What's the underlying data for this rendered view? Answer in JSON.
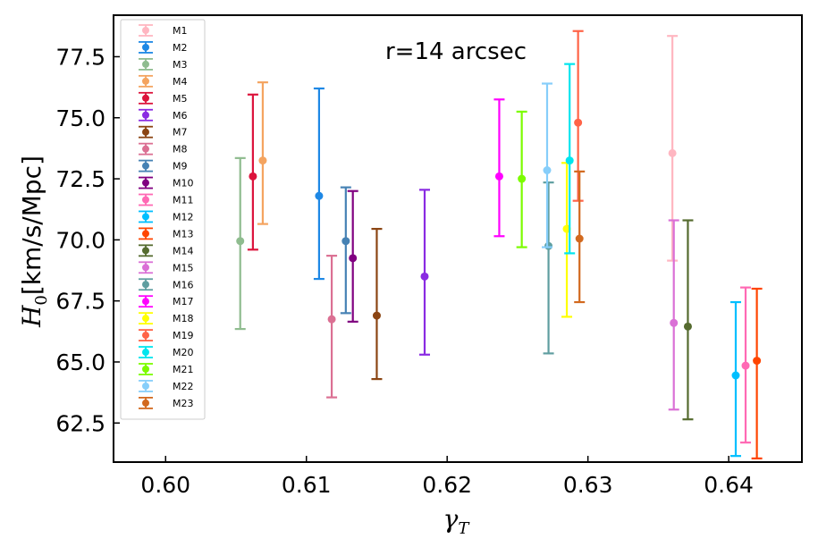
{
  "chart_data": {
    "type": "scatter",
    "style": "errorbar",
    "annotation": "r=14 arcsec",
    "xlabel": "γ",
    "xlabel_sub": "T",
    "ylabel_pre": "H",
    "ylabel_sub": "0",
    "ylabel_post": "[km/s/Mpc]",
    "xlim": [
      0.5963,
      0.6452
    ],
    "ylim": [
      60.9,
      79.2
    ],
    "xticks": [
      0.6,
      0.61,
      0.62,
      0.63,
      0.64
    ],
    "xtick_labels": [
      "0.60",
      "0.61",
      "0.62",
      "0.63",
      "0.64"
    ],
    "yticks": [
      62.5,
      65.0,
      67.5,
      70.0,
      72.5,
      75.0,
      77.5
    ],
    "ytick_labels": [
      "62.5",
      "65.0",
      "67.5",
      "70.0",
      "72.5",
      "75.0",
      "77.5"
    ],
    "legend_position": "top-left",
    "series": [
      {
        "name": "M1",
        "color": "#ffb6c1",
        "x": 0.636,
        "y": 73.55,
        "lo": 69.15,
        "hi": 78.35
      },
      {
        "name": "M2",
        "color": "#1e88e5",
        "x": 0.6109,
        "y": 71.8,
        "lo": 68.4,
        "hi": 76.2
      },
      {
        "name": "M3",
        "color": "#8fbc8f",
        "x": 0.6053,
        "y": 69.95,
        "lo": 66.35,
        "hi": 73.35
      },
      {
        "name": "M4",
        "color": "#f4a460",
        "x": 0.6069,
        "y": 73.25,
        "lo": 70.65,
        "hi": 76.45
      },
      {
        "name": "M5",
        "color": "#dc143c",
        "x": 0.6062,
        "y": 72.6,
        "lo": 69.6,
        "hi": 75.95
      },
      {
        "name": "M6",
        "color": "#8a2be2",
        "x": 0.6184,
        "y": 68.5,
        "lo": 65.3,
        "hi": 72.05
      },
      {
        "name": "M7",
        "color": "#8b4513",
        "x": 0.615,
        "y": 66.9,
        "lo": 64.3,
        "hi": 70.45
      },
      {
        "name": "M8",
        "color": "#db7093",
        "x": 0.6118,
        "y": 66.75,
        "lo": 63.55,
        "hi": 69.35
      },
      {
        "name": "M9",
        "color": "#4682b4",
        "x": 0.6128,
        "y": 69.95,
        "lo": 67.0,
        "hi": 72.15
      },
      {
        "name": "M10",
        "color": "#800080",
        "x": 0.6133,
        "y": 69.25,
        "lo": 66.65,
        "hi": 72.0
      },
      {
        "name": "M11",
        "color": "#ff69b4",
        "x": 0.6412,
        "y": 64.85,
        "lo": 61.7,
        "hi": 68.05
      },
      {
        "name": "M12",
        "color": "#00bfff",
        "x": 0.6405,
        "y": 64.45,
        "lo": 61.15,
        "hi": 67.45
      },
      {
        "name": "M13",
        "color": "#ff4500",
        "x": 0.642,
        "y": 65.05,
        "lo": 61.05,
        "hi": 68.0
      },
      {
        "name": "M14",
        "color": "#556b2f",
        "x": 0.6371,
        "y": 66.45,
        "lo": 62.65,
        "hi": 70.8
      },
      {
        "name": "M15",
        "color": "#da70d6",
        "x": 0.6361,
        "y": 66.6,
        "lo": 63.05,
        "hi": 70.8
      },
      {
        "name": "M16",
        "color": "#5f9ea0",
        "x": 0.6272,
        "y": 69.75,
        "lo": 65.35,
        "hi": 72.35
      },
      {
        "name": "M17",
        "color": "#ff00ff",
        "x": 0.6237,
        "y": 72.6,
        "lo": 70.15,
        "hi": 75.75
      },
      {
        "name": "M18",
        "color": "#ffff00",
        "x": 0.6285,
        "y": 70.45,
        "lo": 66.85,
        "hi": 73.15
      },
      {
        "name": "M19",
        "color": "#ff6347",
        "x": 0.6293,
        "y": 74.8,
        "lo": 71.6,
        "hi": 78.55
      },
      {
        "name": "M20",
        "color": "#00e5ee",
        "x": 0.6287,
        "y": 73.25,
        "lo": 69.45,
        "hi": 77.2
      },
      {
        "name": "M21",
        "color": "#7cfc00",
        "x": 0.6253,
        "y": 72.5,
        "lo": 69.7,
        "hi": 75.25
      },
      {
        "name": "M22",
        "color": "#87cefa",
        "x": 0.6271,
        "y": 72.85,
        "lo": 69.7,
        "hi": 76.4
      },
      {
        "name": "M23",
        "color": "#d2691e",
        "x": 0.6294,
        "y": 70.05,
        "lo": 67.45,
        "hi": 72.8
      }
    ]
  }
}
